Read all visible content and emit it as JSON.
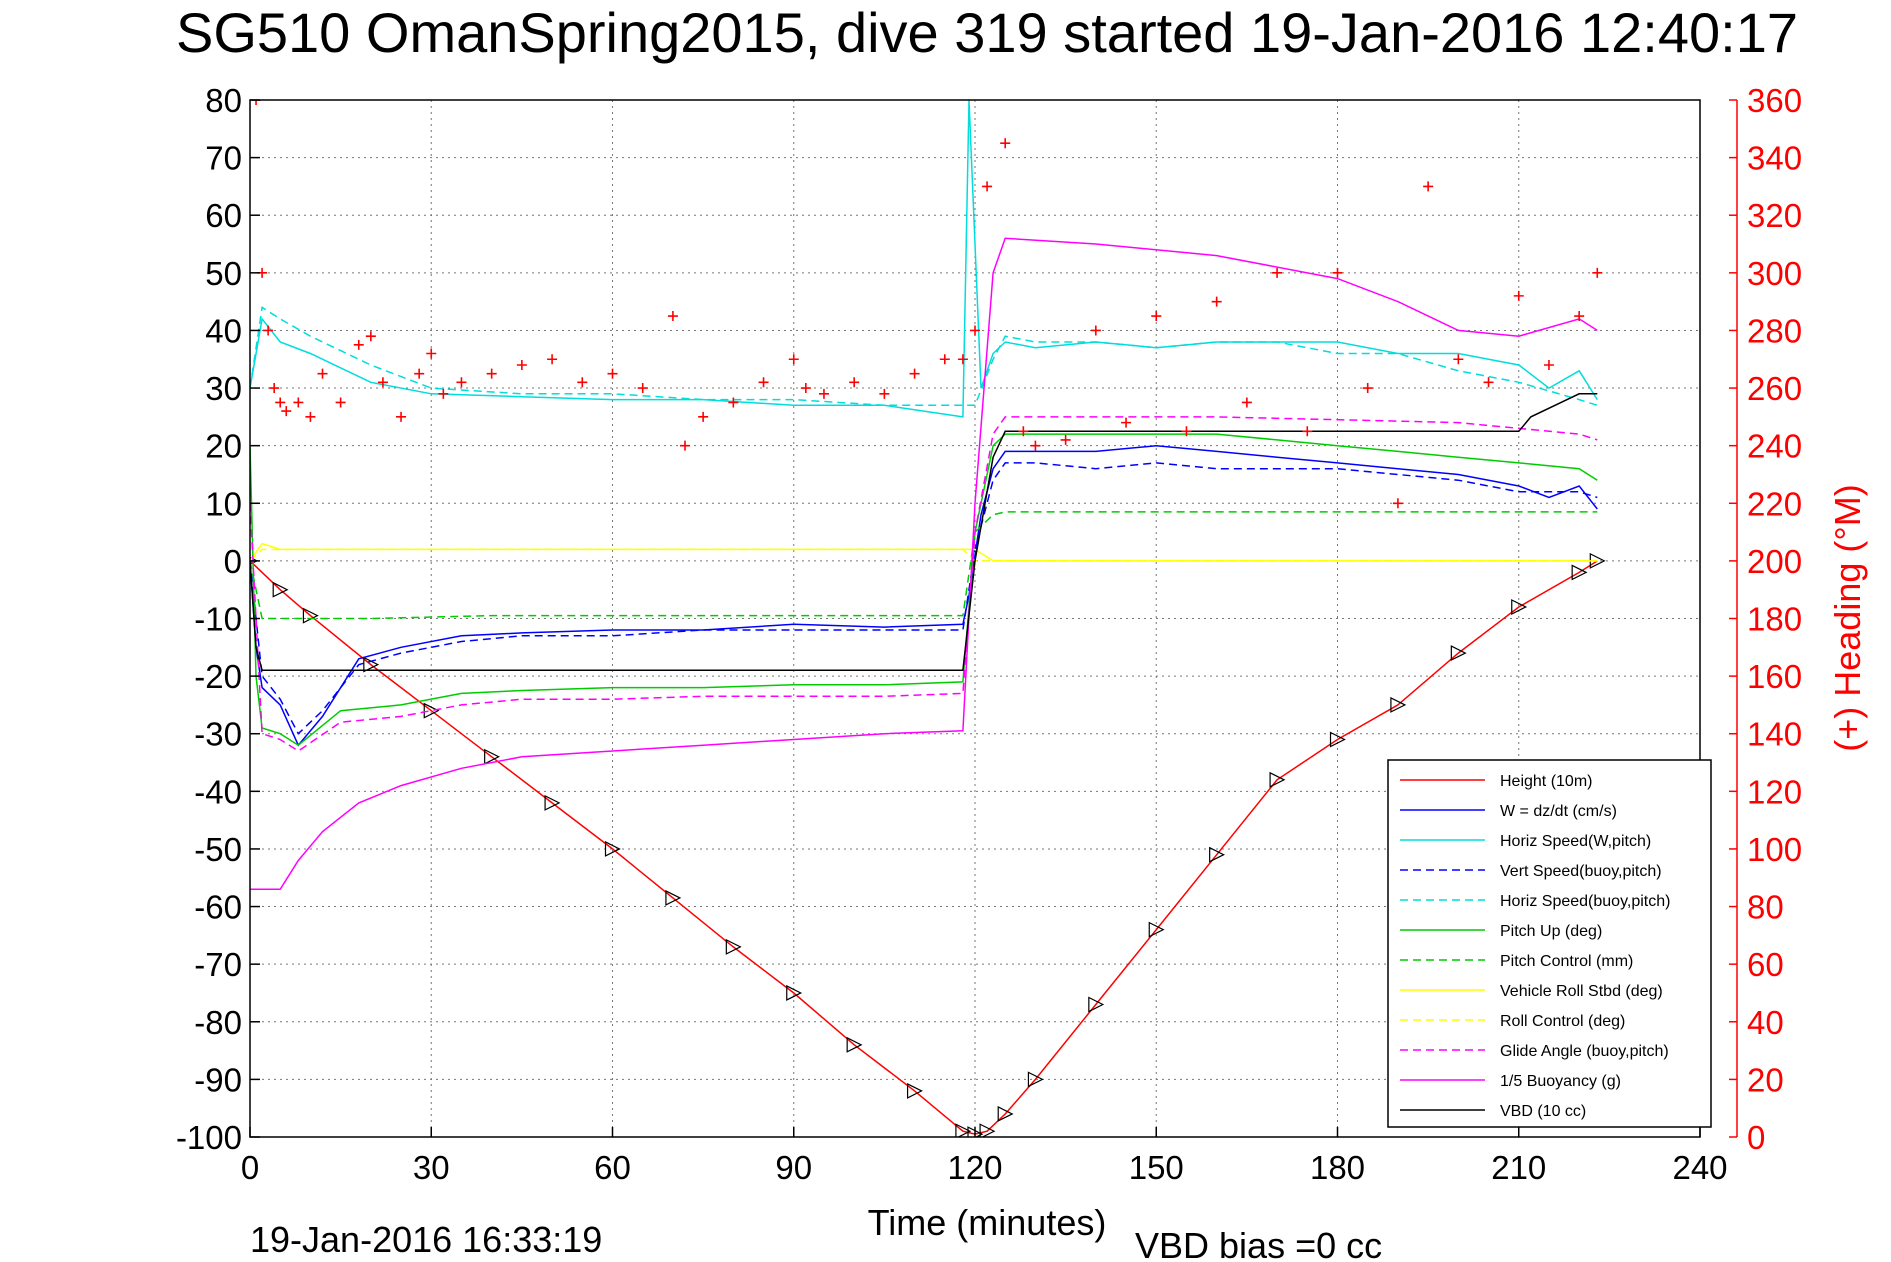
{
  "chart_data": {
    "type": "line",
    "title": "SG510 OmanSpring2015, dive 319 started 19-Jan-2016 12:40:17",
    "xlabel": "Time (minutes)",
    "ylabel": "",
    "y2label": "(+) Heading (°M)",
    "xlim": [
      0,
      240
    ],
    "ylim": [
      -100,
      80
    ],
    "y2lim": [
      0,
      360
    ],
    "x_ticks": [
      "0",
      "30",
      "60",
      "90",
      "120",
      "150",
      "180",
      "210",
      "240"
    ],
    "y_ticks": [
      "80",
      "70",
      "60",
      "50",
      "40",
      "30",
      "20",
      "10",
      "0",
      "-10",
      "-20",
      "-30",
      "-40",
      "-50",
      "-60",
      "-70",
      "-80",
      "-90",
      "-100"
    ],
    "y2_ticks": [
      "360",
      "340",
      "320",
      "300",
      "280",
      "260",
      "240",
      "220",
      "200",
      "180",
      "160",
      "140",
      "120",
      "100",
      "80",
      "60",
      "40",
      "20",
      "0"
    ],
    "grid": true,
    "legend_position": "bottom-right",
    "footer_left": "19-Jan-2016 16:33:19",
    "footer_right": "VBD bias =0 cc",
    "series": [
      {
        "name": "Height (10m)",
        "color": "#ff0000",
        "style": "solid",
        "axis": "left",
        "x": [
          0,
          5,
          10,
          20,
          30,
          40,
          50,
          60,
          70,
          80,
          90,
          100,
          110,
          118,
          120,
          122,
          125,
          130,
          140,
          150,
          160,
          170,
          180,
          190,
          200,
          210,
          220,
          223
        ],
        "y": [
          0,
          -5,
          -9.5,
          -18,
          -26,
          -34,
          -42,
          -50,
          -58.5,
          -67,
          -75,
          -84,
          -92,
          -99,
          -99.5,
          -99,
          -96,
          -90,
          -77,
          -64,
          -51,
          -38,
          -31,
          -25,
          -16,
          -8,
          -2,
          0
        ]
      },
      {
        "name": "W = dz/dt (cm/s)",
        "color": "#0000ff",
        "style": "solid",
        "axis": "left",
        "x": [
          0,
          1,
          2,
          5,
          8,
          12,
          18,
          25,
          35,
          45,
          60,
          75,
          90,
          105,
          118,
          119,
          121,
          123,
          125,
          130,
          140,
          150,
          160,
          170,
          180,
          190,
          200,
          210,
          215,
          220,
          223
        ],
        "y": [
          0,
          -15,
          -22,
          -25,
          -32,
          -27,
          -17,
          -15,
          -13,
          -12.5,
          -12,
          -12,
          -11,
          -11.5,
          -11,
          -6,
          8,
          16,
          19,
          19,
          19,
          20,
          19,
          18,
          17,
          16,
          15,
          13,
          11,
          13,
          9
        ]
      },
      {
        "name": "Horiz Speed(W,pitch)",
        "color": "#00dddd",
        "style": "solid",
        "axis": "left",
        "x": [
          0,
          2,
          5,
          10,
          20,
          30,
          45,
          60,
          75,
          90,
          105,
          118,
          119,
          121,
          123,
          125,
          130,
          140,
          150,
          160,
          170,
          180,
          190,
          200,
          210,
          215,
          220,
          223
        ],
        "y": [
          30,
          42,
          38,
          36,
          31,
          29,
          28.5,
          28,
          28,
          27,
          27,
          25,
          80,
          30,
          36,
          38,
          37,
          38,
          37,
          38,
          38,
          38,
          36,
          36,
          34,
          30,
          33,
          28
        ]
      },
      {
        "name": "Vert Speed(buoy,pitch)",
        "color": "#0000ff",
        "style": "dashed",
        "axis": "left",
        "x": [
          0,
          2,
          5,
          8,
          12,
          18,
          25,
          35,
          45,
          60,
          75,
          90,
          105,
          118,
          120,
          123,
          125,
          130,
          140,
          150,
          160,
          170,
          180,
          190,
          200,
          210,
          220,
          223
        ],
        "y": [
          0,
          -20,
          -24,
          -30,
          -26,
          -18,
          -16,
          -14,
          -13,
          -13,
          -12,
          -12,
          -12,
          -12,
          2,
          14,
          17,
          17,
          16,
          17,
          16,
          16,
          16,
          15,
          14,
          12,
          12,
          11
        ]
      },
      {
        "name": "Horiz Speed(buoy,pitch)",
        "color": "#00dddd",
        "style": "dashed",
        "axis": "left",
        "x": [
          0,
          2,
          5,
          10,
          20,
          30,
          45,
          60,
          75,
          90,
          105,
          118,
          120,
          123,
          125,
          130,
          140,
          150,
          160,
          170,
          180,
          190,
          200,
          210,
          220,
          223
        ],
        "y": [
          30,
          44,
          42,
          39,
          34,
          30,
          29,
          29,
          28,
          28,
          27,
          27,
          27,
          35,
          39,
          38,
          38,
          37,
          38,
          38,
          36,
          36,
          33,
          31,
          28,
          27
        ]
      },
      {
        "name": "Pitch Up (deg)",
        "color": "#00cc00",
        "style": "solid",
        "axis": "left",
        "x": [
          0,
          1,
          2,
          5,
          8,
          15,
          25,
          35,
          45,
          60,
          75,
          90,
          105,
          118,
          120,
          123,
          125,
          130,
          140,
          150,
          160,
          170,
          180,
          190,
          200,
          210,
          220,
          223
        ],
        "y": [
          20,
          -20,
          -29,
          -30,
          -32,
          -26,
          -25,
          -23,
          -22.5,
          -22,
          -22,
          -21.5,
          -21.5,
          -21,
          5,
          20,
          22,
          22,
          22,
          22,
          22,
          21,
          20,
          19,
          18,
          17,
          16,
          14
        ]
      },
      {
        "name": "Pitch Control (mm)",
        "color": "#00cc00",
        "style": "dashed",
        "axis": "left",
        "x": [
          0,
          2,
          5,
          20,
          40,
          60,
          80,
          100,
          118,
          120,
          123,
          125,
          140,
          160,
          180,
          200,
          220,
          223
        ],
        "y": [
          0,
          -10,
          -10,
          -10,
          -9.5,
          -9.5,
          -9.5,
          -9.5,
          -9.5,
          5,
          8,
          8.5,
          8.5,
          8.5,
          8.5,
          8.5,
          8.5,
          8.5
        ]
      },
      {
        "name": "Vehicle Roll Stbd (deg)",
        "color": "#ffff00",
        "style": "solid",
        "axis": "left",
        "x": [
          0,
          2,
          5,
          10,
          20,
          30,
          45,
          60,
          75,
          90,
          105,
          118,
          120,
          123,
          125,
          140,
          160,
          180,
          200,
          220,
          223
        ],
        "y": [
          0,
          3,
          2,
          2,
          2,
          2,
          2,
          2,
          2,
          2,
          2,
          2,
          2,
          0,
          0,
          0,
          0,
          0,
          0,
          0,
          0
        ]
      },
      {
        "name": "Roll Control (deg)",
        "color": "#ffff00",
        "style": "dashed",
        "axis": "left",
        "x": [
          0,
          2,
          5,
          20,
          40,
          60,
          80,
          100,
          118,
          120,
          125,
          140,
          160,
          180,
          200,
          220,
          223
        ],
        "y": [
          0,
          2,
          2,
          2,
          2,
          2,
          2,
          2,
          2,
          0,
          0,
          0,
          0,
          0,
          0,
          0,
          0
        ]
      },
      {
        "name": "Glide Angle (buoy,pitch)",
        "color": "#ff00ff",
        "style": "dashed",
        "axis": "left",
        "x": [
          0,
          2,
          5,
          8,
          15,
          25,
          35,
          45,
          60,
          75,
          90,
          105,
          118,
          120,
          123,
          125,
          140,
          160,
          180,
          200,
          220,
          223
        ],
        "y": [
          10,
          -30,
          -31,
          -33,
          -28,
          -27,
          -25,
          -24,
          -24,
          -23.5,
          -23.5,
          -23.5,
          -23,
          5,
          22,
          25,
          25,
          25,
          24.5,
          24,
          22,
          21
        ]
      },
      {
        "name": "1/5 Buoyancy (g)",
        "color": "#ff00ff",
        "style": "solid",
        "axis": "left",
        "x": [
          0,
          1,
          2,
          5,
          8,
          12,
          18,
          25,
          35,
          45,
          60,
          75,
          90,
          105,
          118,
          120,
          123,
          125,
          140,
          160,
          180,
          190,
          200,
          210,
          220,
          223
        ],
        "y": [
          -57,
          -57,
          -57,
          -57,
          -52,
          -47,
          -42,
          -39,
          -36,
          -34,
          -33,
          -32,
          -31,
          -30,
          -29.5,
          10,
          50,
          56,
          55,
          53,
          49,
          45,
          40,
          39,
          42,
          40
        ]
      },
      {
        "name": "VBD (10 cc)",
        "color": "#000000",
        "style": "solid",
        "axis": "left",
        "x": [
          0,
          1,
          2,
          20,
          40,
          60,
          80,
          100,
          118,
          120,
          123,
          125,
          140,
          160,
          180,
          200,
          210,
          212,
          218,
          220,
          223
        ],
        "y": [
          0,
          -15,
          -19,
          -19,
          -19,
          -19,
          -19,
          -19,
          -19,
          0,
          18,
          22.5,
          22.5,
          22.5,
          22.5,
          22.5,
          22.5,
          25,
          28,
          29,
          29
        ]
      },
      {
        "name": "Heading",
        "color": "#ff0000",
        "style": "markers",
        "axis": "right",
        "x": [
          1,
          2,
          3,
          4,
          5,
          6,
          8,
          10,
          12,
          15,
          18,
          20,
          22,
          25,
          28,
          30,
          32,
          35,
          40,
          45,
          50,
          55,
          60,
          65,
          70,
          72,
          75,
          80,
          85,
          90,
          92,
          95,
          100,
          105,
          110,
          115,
          118,
          120,
          122,
          125,
          128,
          130,
          135,
          140,
          145,
          150,
          155,
          160,
          165,
          170,
          175,
          180,
          185,
          190,
          195,
          200,
          205,
          210,
          215,
          220,
          223
        ],
        "y": [
          360,
          300,
          280,
          260,
          255,
          252,
          255,
          250,
          265,
          255,
          275,
          278,
          262,
          250,
          265,
          272,
          258,
          262,
          265,
          268,
          270,
          262,
          265,
          260,
          285,
          240,
          250,
          255,
          262,
          270,
          260,
          258,
          262,
          258,
          265,
          270,
          270,
          280,
          330,
          345,
          245,
          240,
          242,
          280,
          248,
          285,
          245,
          290,
          255,
          300,
          245,
          300,
          260,
          220,
          330,
          270,
          262,
          292,
          268,
          285,
          300
        ]
      }
    ]
  }
}
